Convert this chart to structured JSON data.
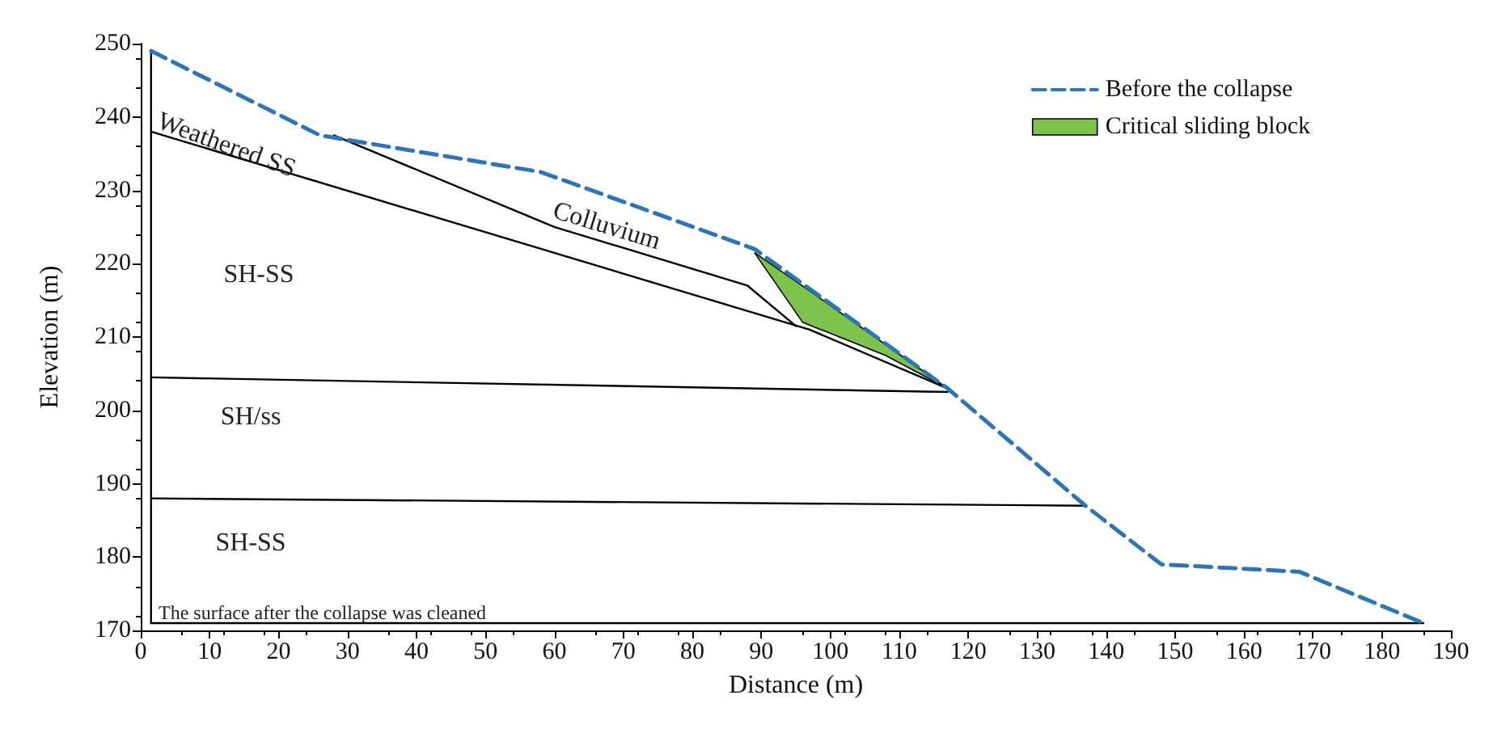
{
  "chart_data": {
    "type": "line",
    "xlabel": "Distance (m)",
    "ylabel": "Elevation (m)",
    "xlim": [
      0,
      190
    ],
    "xticks": [
      0,
      10,
      20,
      30,
      40,
      50,
      60,
      70,
      80,
      90,
      100,
      110,
      120,
      130,
      140,
      150,
      160,
      170,
      180,
      190
    ],
    "ylim": [
      170,
      250
    ],
    "yticks": [
      170,
      180,
      190,
      200,
      210,
      220,
      230,
      240,
      250
    ],
    "grid": false,
    "legend": "top right",
    "marker": "none",
    "series": [
      {
        "name": "Before the collapse",
        "color": "#2e75b6",
        "line_style": "dashed",
        "x": [
          1.5,
          26,
          58,
          89,
          117,
          137,
          148,
          168,
          186
        ],
        "values": [
          249,
          237.5,
          232.5,
          222,
          203,
          187,
          179,
          178,
          171
        ]
      },
      {
        "name": "Critical sliding block",
        "type": "area",
        "color": "#7dc24b",
        "x": [
          89,
          97,
          117,
          108,
          96,
          89
        ],
        "values": [
          221.5,
          216.3,
          203,
          207.5,
          212,
          221.5
        ]
      },
      {
        "color": "#000000",
        "line_style": "solid",
        "x": [
          1.5,
          97,
          117
        ],
        "values": [
          238,
          211,
          203
        ]
      },
      {
        "color": "#000000",
        "line_style": "solid",
        "x": [
          28,
          60,
          88,
          95
        ],
        "values": [
          237.5,
          225,
          217,
          211.5
        ]
      },
      {
        "color": "#000000",
        "line_style": "solid",
        "x": [
          1.5,
          117
        ],
        "values": [
          204.5,
          202.5
        ]
      },
      {
        "color": "#000000",
        "line_style": "solid",
        "x": [
          1.5,
          137
        ],
        "values": [
          188,
          187
        ]
      },
      {
        "color": "#000000",
        "line_style": "solid",
        "x": [
          1.5,
          186
        ],
        "values": [
          171,
          171
        ]
      },
      {
        "color": "#000000",
        "line_style": "solid",
        "x": [
          1.5,
          1.5
        ],
        "values": [
          171,
          249
        ]
      }
    ],
    "annotations": [
      "Weathered SS",
      "Colluvium",
      "SH-SS",
      "SH/ss",
      "SH-SS",
      "The surface after the collapse was cleaned"
    ]
  }
}
